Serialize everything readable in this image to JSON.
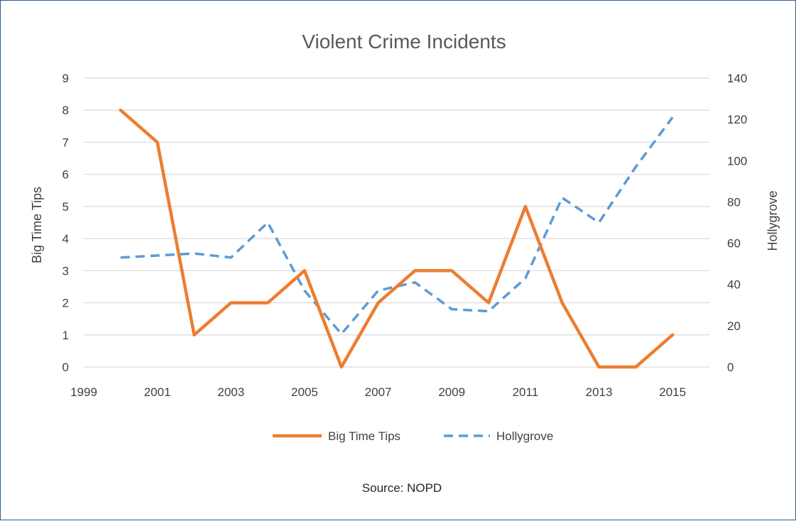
{
  "chart_data": {
    "type": "line",
    "title": "Violent Crime Incidents",
    "xlabel": "",
    "ylabel": "Big Time Tips",
    "y2label": "Hollygrove",
    "xlim": [
      1999,
      2016
    ],
    "xticks": [
      1999,
      2001,
      2003,
      2005,
      2007,
      2009,
      2011,
      2013,
      2015
    ],
    "ylim": [
      0,
      9
    ],
    "yticks": [
      0,
      1,
      2,
      3,
      4,
      5,
      6,
      7,
      8,
      9
    ],
    "y2lim": [
      0,
      140
    ],
    "y2ticks": [
      0,
      20,
      40,
      60,
      80,
      100,
      120,
      140
    ],
    "grid": true,
    "legend_position": "bottom",
    "x": [
      2000,
      2001,
      2002,
      2003,
      2004,
      2005,
      2006,
      2007,
      2008,
      2009,
      2010,
      2011,
      2012,
      2013,
      2014,
      2015
    ],
    "series": [
      {
        "name": "Big Time Tips",
        "axis": "left",
        "style": "solid",
        "color": "#ed7d31",
        "values": [
          8,
          7,
          1,
          2,
          2,
          3,
          0,
          2,
          3,
          3,
          2,
          5,
          2,
          0,
          0,
          1
        ]
      },
      {
        "name": "Hollygrove",
        "axis": "right",
        "style": "dashed",
        "color": "#5b9bd5",
        "values": [
          53,
          54,
          55,
          53,
          70,
          37,
          16,
          37,
          41,
          28,
          27,
          43,
          82,
          70,
          97,
          121
        ]
      }
    ],
    "annotation": "Source: NOPD"
  }
}
